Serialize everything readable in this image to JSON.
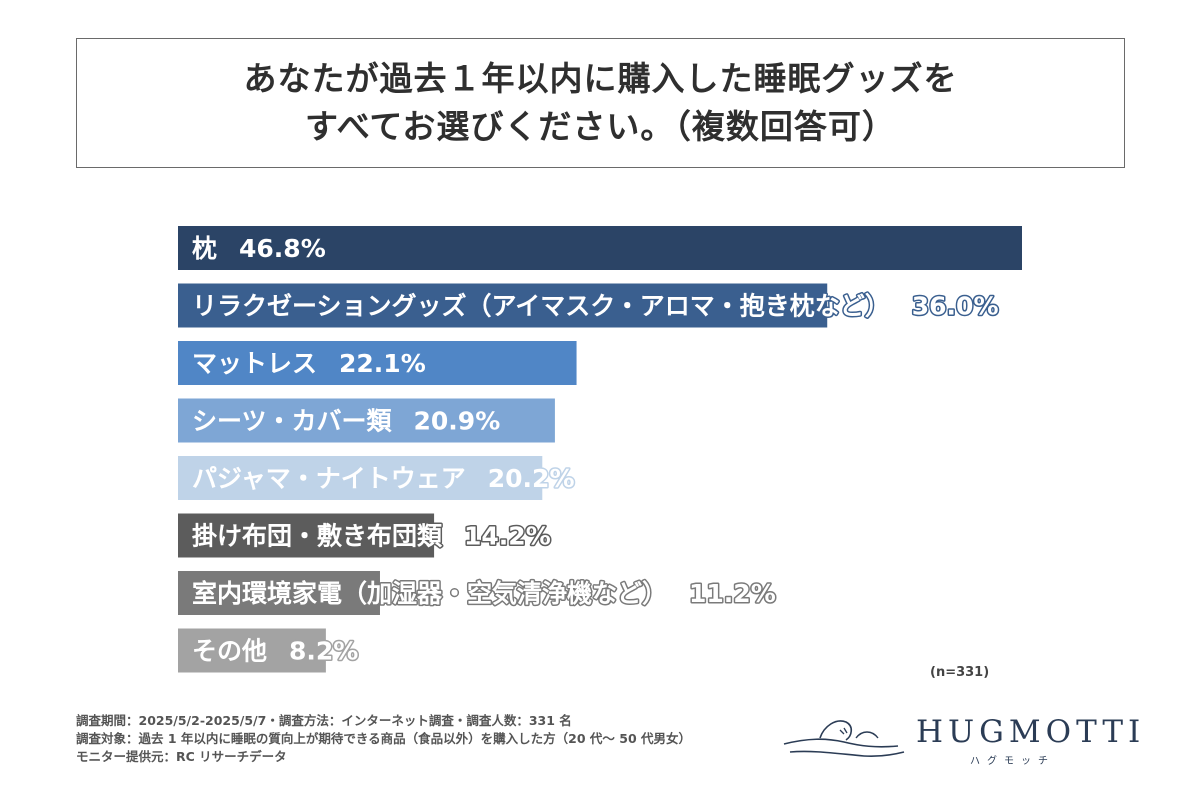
{
  "title": {
    "line1": "あなたが過去１年以内に購入した睡眠グッズを",
    "line2": "すべてお選びください。（複数回答可）"
  },
  "chart_data": {
    "type": "bar",
    "orientation": "horizontal",
    "unit": "%",
    "categories": [
      "枕",
      "リラクゼーショングッズ（アイマスク・アロマ・抱き枕など）",
      "マットレス",
      "シーツ・カバー類",
      "パジャマ・ナイトウェア",
      "掛け布団・敷き布団類",
      "室内環境家電（加湿器・空気清浄機など）",
      "その他"
    ],
    "values": [
      46.8,
      36.0,
      22.1,
      20.9,
      20.2,
      14.2,
      11.2,
      8.2
    ],
    "value_labels": [
      "46.8%",
      "36.0%",
      "22.1%",
      "20.9%",
      "20.2%",
      "14.2%",
      "11.2%",
      "8.2%"
    ],
    "colors": [
      "#2b4466",
      "#3a5f8f",
      "#5086c6",
      "#7ea6d5",
      "#bfd3e8",
      "#5c5c5c",
      "#7a7a7a",
      "#a3a3a3"
    ],
    "xlim": [
      0,
      46.8
    ],
    "grid": false,
    "legend": "none"
  },
  "sample_note": "(n=331)",
  "footer": {
    "line1": "調査期間：2025/5/2-2025/5/7・調査方法：インターネット調査・調査人数：331 名",
    "line2": "調査対象：過去 1 年以内に睡眠の質向上が期待できる商品（食品以外）を購入した方（20 代～ 50 代男女）",
    "line3": "モニター提供元：RC リサーチデータ"
  },
  "logo": {
    "word": "HUGMOTTI",
    "kana": "ハグモッチ",
    "icon": "sleeping-figure-icon"
  }
}
